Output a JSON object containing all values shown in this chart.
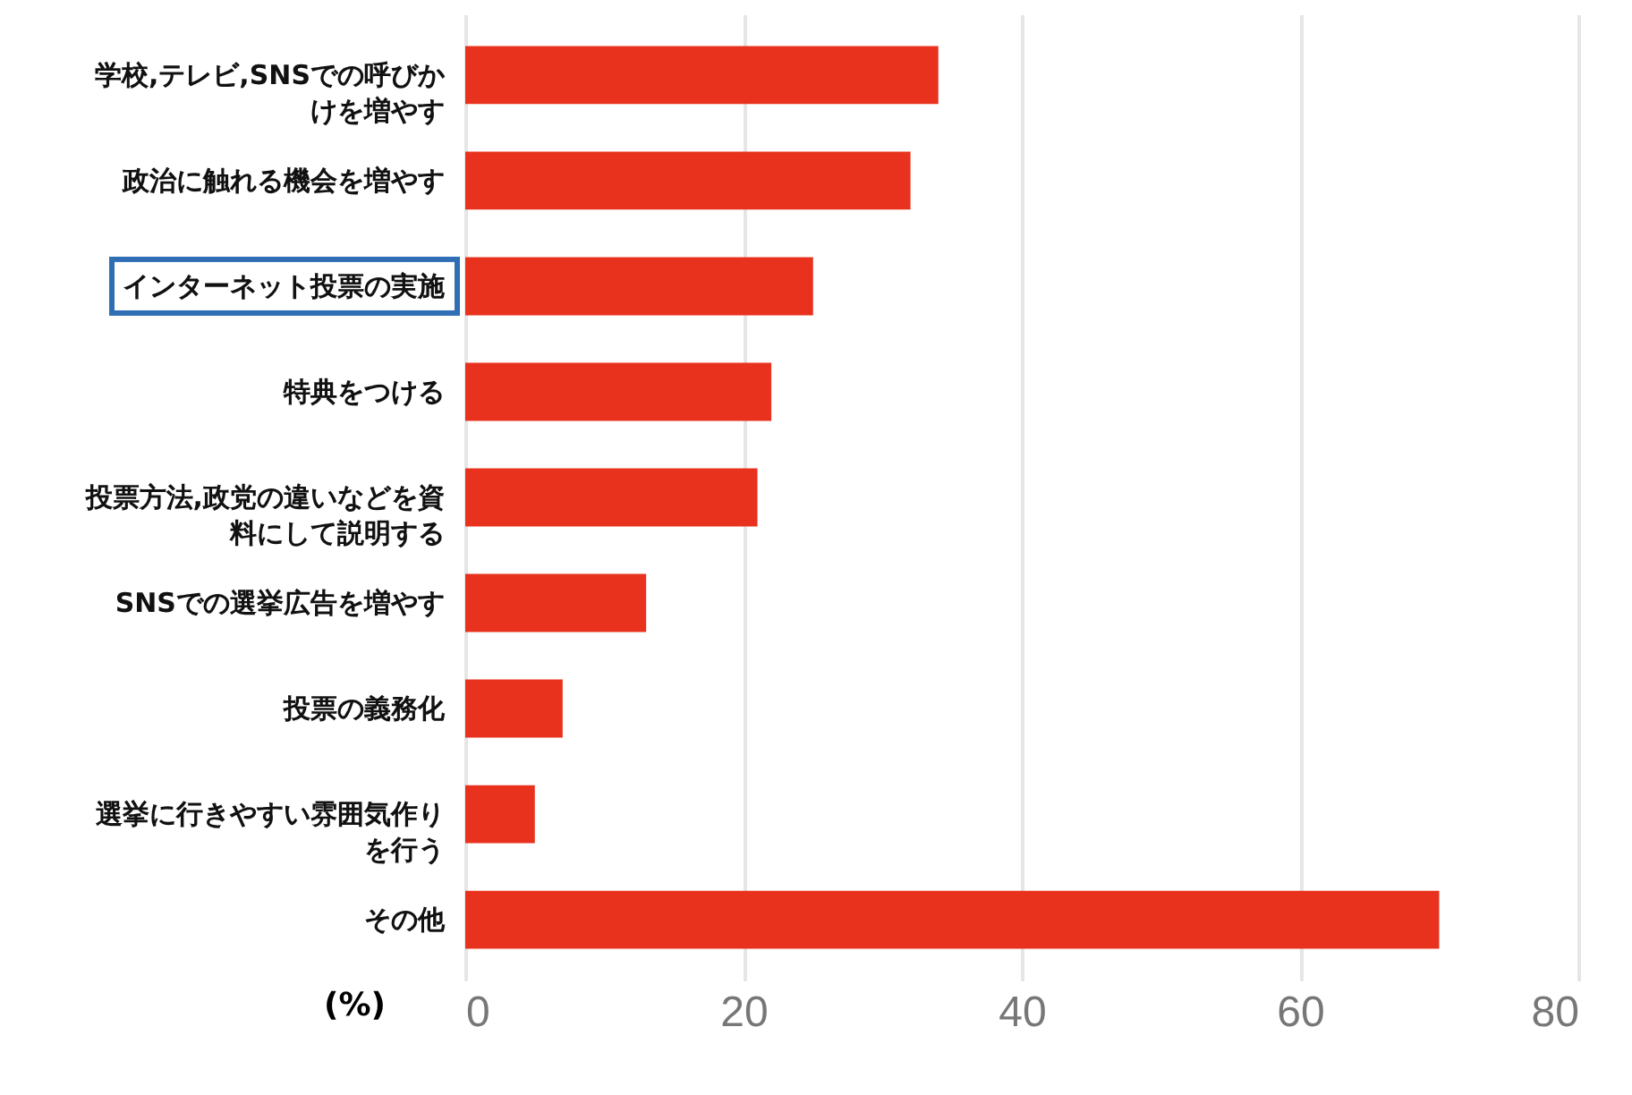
{
  "chart_data": {
    "type": "bar",
    "orientation": "horizontal",
    "categories": [
      "学校,テレビ,SNSでの呼びかけを増やす",
      "政治に触れる機会を増やす",
      "インターネット投票の実施",
      "特典をつける",
      "投票方法,政党の違いなどを資料にして説明する",
      "SNSでの選挙広告を増やす",
      "投票の義務化",
      "選挙に行きやすい雰囲気作りを行う",
      "その他"
    ],
    "values": [
      34,
      32,
      25,
      22,
      21,
      13,
      7,
      5,
      70
    ],
    "color": "#e8321e",
    "xlabel": "(%)",
    "xlim": [
      0,
      80
    ],
    "xticks": [
      0,
      20,
      40,
      60,
      80
    ],
    "grid": "x"
  }
}
